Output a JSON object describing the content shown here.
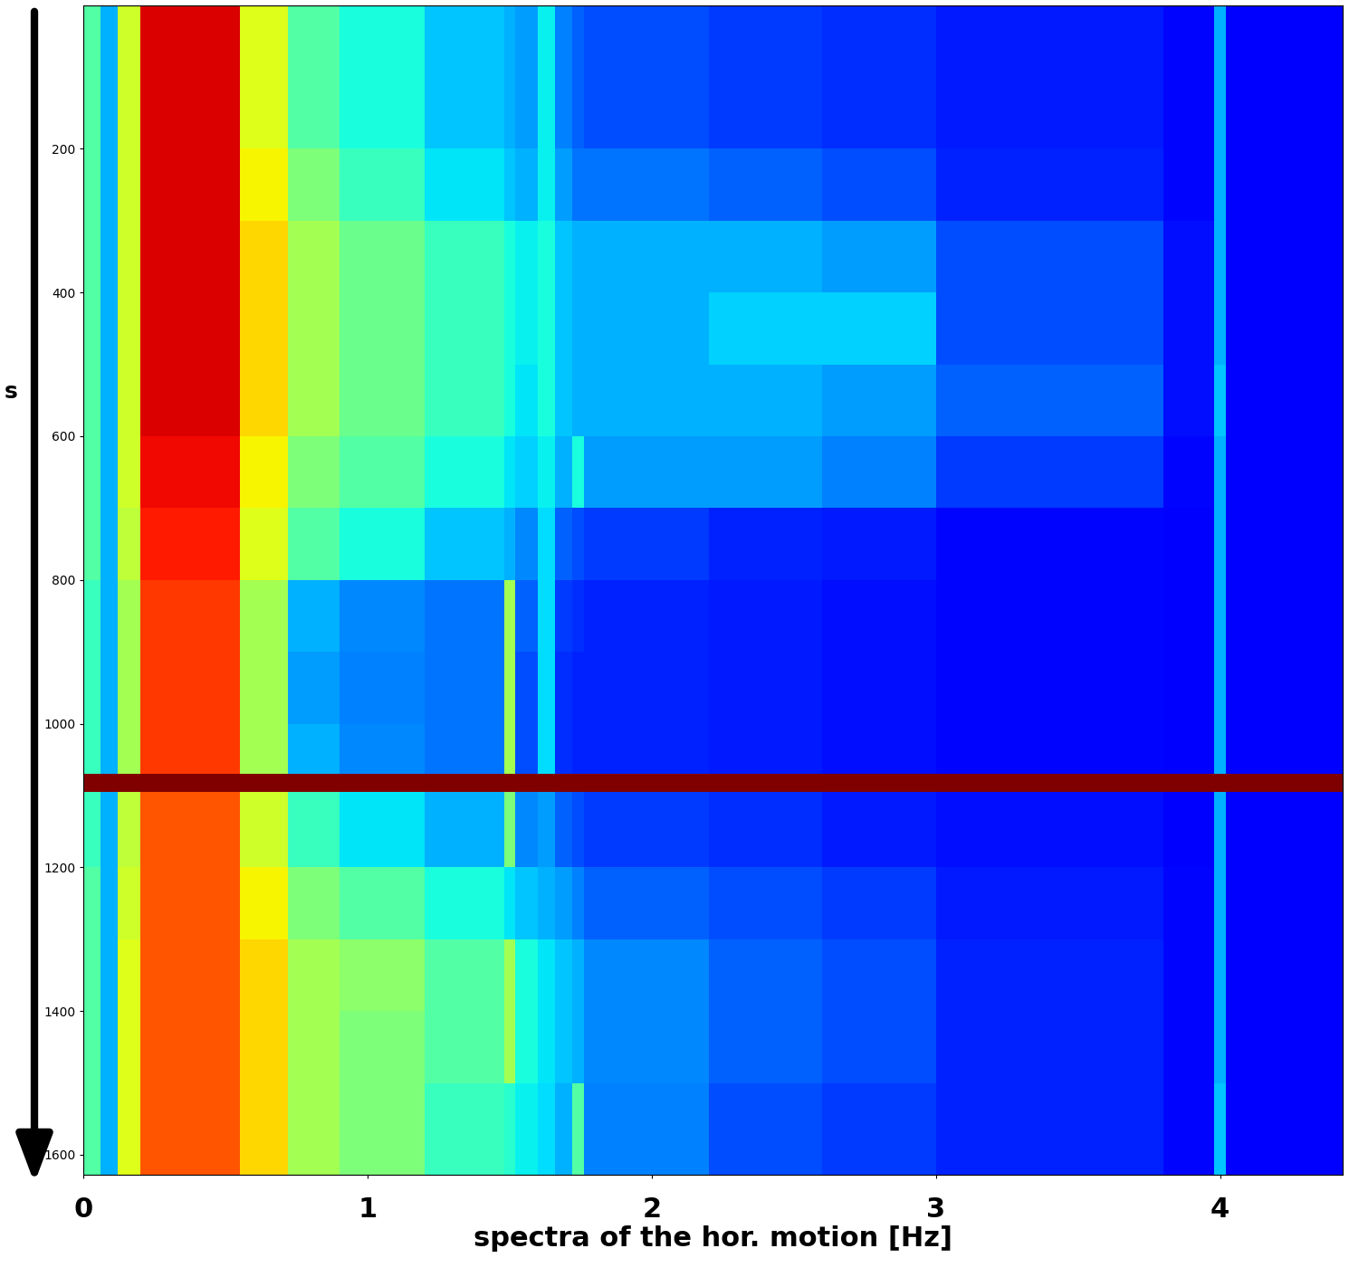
{
  "chart_data": {
    "type": "heatmap",
    "xlabel": "spectra of the hor. motion [Hz]",
    "ylabel": "s",
    "xlim": [
      0,
      4.43
    ],
    "ylim": [
      1628,
      0
    ],
    "xticks": [
      0,
      1,
      2,
      3,
      4
    ],
    "yticks": [
      200,
      400,
      600,
      800,
      1000,
      1200,
      1400,
      1600
    ],
    "color": "jet",
    "zlim": [
      0,
      1
    ],
    "x_edges": [
      0,
      0.06,
      0.12,
      0.2,
      0.55,
      0.72,
      0.9,
      1.2,
      1.48,
      1.52,
      1.6,
      1.66,
      1.72,
      1.76,
      2.2,
      2.6,
      3.0,
      3.8,
      3.98,
      4.02,
      4.43
    ],
    "y_edges": [
      0,
      100,
      200,
      300,
      400,
      500,
      600,
      700,
      800,
      900,
      1000,
      1070,
      1095,
      1200,
      1300,
      1400,
      1500,
      1628
    ],
    "cells": [
      [
        0.45,
        0.3,
        0.6,
        0.92,
        0.62,
        0.45,
        0.38,
        0.32,
        0.3,
        0.28,
        0.36,
        0.25,
        0.22,
        0.2,
        0.18,
        0.17,
        0.15,
        0.13,
        0.3,
        0.12
      ],
      [
        0.45,
        0.3,
        0.6,
        0.92,
        0.62,
        0.45,
        0.38,
        0.32,
        0.3,
        0.28,
        0.36,
        0.25,
        0.22,
        0.2,
        0.18,
        0.17,
        0.15,
        0.13,
        0.3,
        0.12
      ],
      [
        0.45,
        0.3,
        0.6,
        0.92,
        0.65,
        0.5,
        0.42,
        0.35,
        0.32,
        0.3,
        0.36,
        0.28,
        0.24,
        0.24,
        0.22,
        0.2,
        0.16,
        0.13,
        0.3,
        0.12
      ],
      [
        0.45,
        0.3,
        0.6,
        0.92,
        0.68,
        0.55,
        0.48,
        0.42,
        0.38,
        0.36,
        0.38,
        0.32,
        0.3,
        0.3,
        0.3,
        0.28,
        0.2,
        0.14,
        0.3,
        0.12
      ],
      [
        0.45,
        0.3,
        0.6,
        0.92,
        0.68,
        0.55,
        0.48,
        0.42,
        0.38,
        0.36,
        0.38,
        0.32,
        0.3,
        0.3,
        0.33,
        0.33,
        0.2,
        0.14,
        0.3,
        0.12
      ],
      [
        0.45,
        0.3,
        0.6,
        0.92,
        0.68,
        0.55,
        0.48,
        0.42,
        0.38,
        0.35,
        0.38,
        0.32,
        0.3,
        0.3,
        0.3,
        0.28,
        0.22,
        0.14,
        0.32,
        0.12
      ],
      [
        0.45,
        0.3,
        0.6,
        0.9,
        0.65,
        0.5,
        0.45,
        0.38,
        0.35,
        0.33,
        0.36,
        0.3,
        0.38,
        0.28,
        0.28,
        0.25,
        0.18,
        0.13,
        0.3,
        0.12
      ],
      [
        0.45,
        0.3,
        0.58,
        0.88,
        0.62,
        0.45,
        0.38,
        0.32,
        0.3,
        0.26,
        0.34,
        0.22,
        0.2,
        0.18,
        0.16,
        0.15,
        0.13,
        0.12,
        0.3,
        0.12
      ],
      [
        0.42,
        0.3,
        0.55,
        0.85,
        0.55,
        0.3,
        0.26,
        0.24,
        0.55,
        0.22,
        0.34,
        0.18,
        0.17,
        0.16,
        0.15,
        0.14,
        0.13,
        0.12,
        0.3,
        0.12
      ],
      [
        0.42,
        0.3,
        0.55,
        0.85,
        0.55,
        0.28,
        0.25,
        0.24,
        0.55,
        0.2,
        0.34,
        0.17,
        0.16,
        0.16,
        0.15,
        0.14,
        0.13,
        0.12,
        0.3,
        0.12
      ],
      [
        0.42,
        0.3,
        0.55,
        0.85,
        0.55,
        0.3,
        0.26,
        0.24,
        0.55,
        0.2,
        0.34,
        0.17,
        0.16,
        0.16,
        0.15,
        0.14,
        0.13,
        0.12,
        0.3,
        0.12
      ],
      [
        1.0,
        1.0,
        1.0,
        1.0,
        1.0,
        1.0,
        1.0,
        1.0,
        1.0,
        1.0,
        1.0,
        1.0,
        1.0,
        1.0,
        1.0,
        1.0,
        1.0,
        1.0,
        1.0,
        1.0
      ],
      [
        0.42,
        0.3,
        0.58,
        0.82,
        0.6,
        0.42,
        0.35,
        0.3,
        0.5,
        0.26,
        0.28,
        0.22,
        0.2,
        0.18,
        0.17,
        0.15,
        0.14,
        0.12,
        0.3,
        0.12
      ],
      [
        0.45,
        0.3,
        0.6,
        0.82,
        0.65,
        0.5,
        0.45,
        0.38,
        0.35,
        0.32,
        0.3,
        0.28,
        0.25,
        0.22,
        0.2,
        0.18,
        0.15,
        0.13,
        0.3,
        0.12
      ],
      [
        0.45,
        0.3,
        0.62,
        0.82,
        0.68,
        0.55,
        0.52,
        0.45,
        0.55,
        0.38,
        0.35,
        0.32,
        0.3,
        0.26,
        0.22,
        0.2,
        0.16,
        0.13,
        0.3,
        0.12
      ],
      [
        0.45,
        0.3,
        0.62,
        0.82,
        0.68,
        0.55,
        0.5,
        0.45,
        0.55,
        0.38,
        0.35,
        0.32,
        0.3,
        0.26,
        0.22,
        0.2,
        0.16,
        0.13,
        0.3,
        0.12
      ],
      [
        0.45,
        0.3,
        0.62,
        0.82,
        0.68,
        0.55,
        0.5,
        0.42,
        0.4,
        0.36,
        0.34,
        0.3,
        0.45,
        0.25,
        0.2,
        0.18,
        0.16,
        0.13,
        0.32,
        0.12
      ]
    ]
  }
}
